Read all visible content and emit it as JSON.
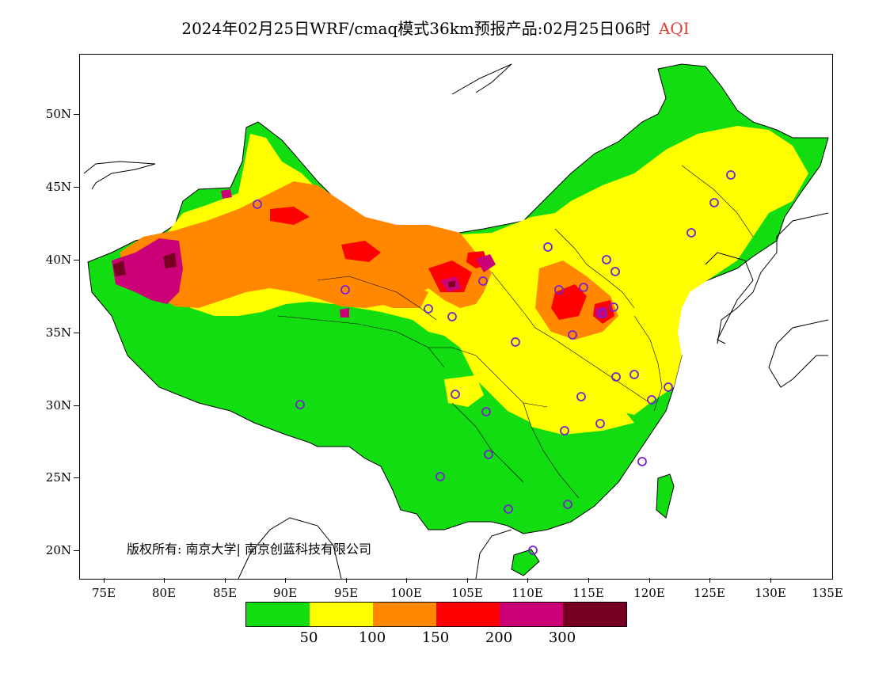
{
  "title": {
    "main": "2024年02月25日WRF/cmaq模式36km预报产品:02月25日06时",
    "highlight": "AQI",
    "highlight_color": "#e0403a"
  },
  "axes": {
    "lat_labels": [
      "50N",
      "45N",
      "40N",
      "35N",
      "30N",
      "25N",
      "20N"
    ],
    "lon_labels": [
      "75E",
      "80E",
      "85E",
      "90E",
      "95E",
      "100E",
      "105E",
      "110E",
      "115E",
      "120E",
      "125E",
      "130E",
      "135E"
    ]
  },
  "copyright": "版权所有: 南京大学| 南京创蓝科技有限公司",
  "legend": {
    "colors": [
      "#11dd11",
      "#ffff00",
      "#ff8800",
      "#ff0000",
      "#cc0077",
      "#770022"
    ],
    "labels": [
      "50",
      "100",
      "150",
      "200",
      "300"
    ]
  },
  "colors": {
    "good": "#11dd11",
    "moderate": "#ffff00",
    "sensitive": "#ff8800",
    "unhealthy": "#ff0000",
    "very_unhealthy": "#cc0077",
    "hazardous": "#770022",
    "station_marker": "#7722cc"
  }
}
